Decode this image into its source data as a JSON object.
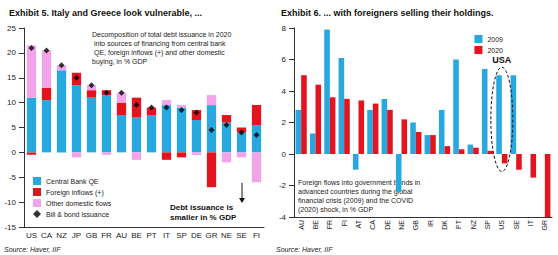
{
  "chart_data": [
    {
      "type": "bar",
      "stacked": true,
      "title": "Exhibit 5. Italy and Greece look vulnerable, ...",
      "subtitle": "Decomposition of total debt issuance in 2020 into sources of financing from central bank QE, foreign inflows (+) and other domestic buying, in % GDP",
      "categories": [
        "US",
        "CA",
        "NZ",
        "JP",
        "GB",
        "FR",
        "AU",
        "BE",
        "PT",
        "IT",
        "SP",
        "DE",
        "GR",
        "NE",
        "SE",
        "FI"
      ],
      "series": [
        {
          "name": "Central Bank QE",
          "color": "#29a8e0",
          "values": [
            11,
            10.5,
            16.5,
            13.5,
            11,
            11.5,
            7.5,
            7,
            7.5,
            9.5,
            9,
            6.5,
            9.5,
            6,
            4,
            5.5
          ]
        },
        {
          "name": "Foreign inflows (+)",
          "color": "#e3141e",
          "values": [
            -0.5,
            2.5,
            0,
            2.5,
            1.5,
            1,
            2.5,
            4,
            1.5,
            -1.5,
            -1,
            2,
            -7,
            1.5,
            1,
            4
          ]
        },
        {
          "name": "Other domestic flows",
          "color": "#f2a3ea",
          "values": [
            10.5,
            7.5,
            1,
            -1,
            1,
            -0.5,
            2,
            -1.5,
            0,
            1,
            0.5,
            -0.5,
            2,
            -2,
            -1,
            -6
          ]
        },
        {
          "name": "Bill & bond issuance",
          "type": "scatter",
          "marker": "diamond",
          "color": "#000000",
          "values": [
            21,
            20.5,
            17.5,
            15,
            13.5,
            12,
            12,
            9.5,
            9,
            9,
            8.5,
            8,
            4.5,
            5.5,
            4,
            3.5
          ]
        }
      ],
      "ylim": [
        -15,
        25
      ],
      "yticks": [
        -15,
        -10,
        -5,
        0,
        5,
        10,
        15,
        20,
        25
      ],
      "grid": false,
      "legend": "lower left",
      "annotations": [
        {
          "text": "Debt issuance is smaller in % GDP"
        }
      ],
      "source": "Source: Haver, IIF"
    },
    {
      "type": "bar",
      "title": "Exhibit 6. ... with foreigners selling their holdings.",
      "subtitle": "Foreign flows into government bonds in advanced countries during the global financial crisis (2009) and the COVID (2020) shock, in % GDP",
      "categories": [
        "AU",
        "BE",
        "FR",
        "FI",
        "AT",
        "CA",
        "DE",
        "NE",
        "GB",
        "IR",
        "DK",
        "PT",
        "NZ",
        "SP",
        "US",
        "SE",
        "IT",
        "GR"
      ],
      "series": [
        {
          "name": "2009",
          "color": "#29a8e0",
          "values": [
            2.8,
            1.3,
            7.9,
            6.1,
            -1.0,
            2.8,
            3.5,
            -2.4,
            2.0,
            1.2,
            2.8,
            6.0,
            0.6,
            5.4,
            5.0,
            5.0,
            null,
            null
          ]
        },
        {
          "name": "2020",
          "color": "#e3141e",
          "values": [
            5.0,
            4.4,
            3.6,
            3.5,
            3.4,
            3.2,
            2.8,
            2.2,
            1.4,
            1.2,
            0.5,
            0.3,
            0.4,
            0.2,
            -0.6,
            -1.0,
            -1.5,
            -4.0
          ]
        }
      ],
      "ylim": [
        -4,
        8
      ],
      "yticks": [
        -4,
        -2,
        0,
        2,
        4,
        6,
        8
      ],
      "grid": false,
      "legend": "upper right",
      "annotations": [
        {
          "text": "USA",
          "category": "US"
        }
      ],
      "source": "Source: Haver, IIF"
    }
  ]
}
